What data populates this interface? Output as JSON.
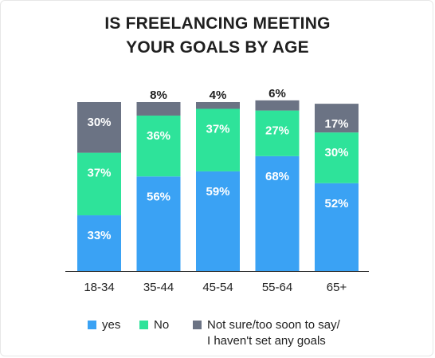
{
  "chart_data": {
    "type": "bar",
    "stacked": true,
    "title": [
      "IS FREELANCING MEETING",
      "YOUR GOALS BY AGE"
    ],
    "xlabel": "",
    "ylabel": "",
    "ylim": [
      0,
      100
    ],
    "categories": [
      "18-34",
      "35-44",
      "45-54",
      "55-64",
      "65+"
    ],
    "series": [
      {
        "name": "yes",
        "color": "#3aa2f4",
        "values": [
          33,
          56,
          59,
          68,
          52
        ],
        "labels": [
          "33%",
          "56%",
          "59%",
          "68%",
          "52%"
        ]
      },
      {
        "name": "No",
        "color": "#2ee39a",
        "values": [
          37,
          36,
          37,
          27,
          30
        ],
        "labels": [
          "37%",
          "36%",
          "37%",
          "27%",
          "30%"
        ]
      },
      {
        "name": "Not sure/too soon to say/ I haven't set any goals",
        "legend_lines": [
          "Not sure/too soon to say/",
          "I haven't set any goals"
        ],
        "color": "#6b7384",
        "values": [
          30,
          8,
          4,
          6,
          17
        ],
        "labels": [
          "30%",
          "8%",
          "4%",
          "6%",
          "17%"
        ]
      }
    ],
    "grid": false,
    "legend_position": "bottom"
  }
}
